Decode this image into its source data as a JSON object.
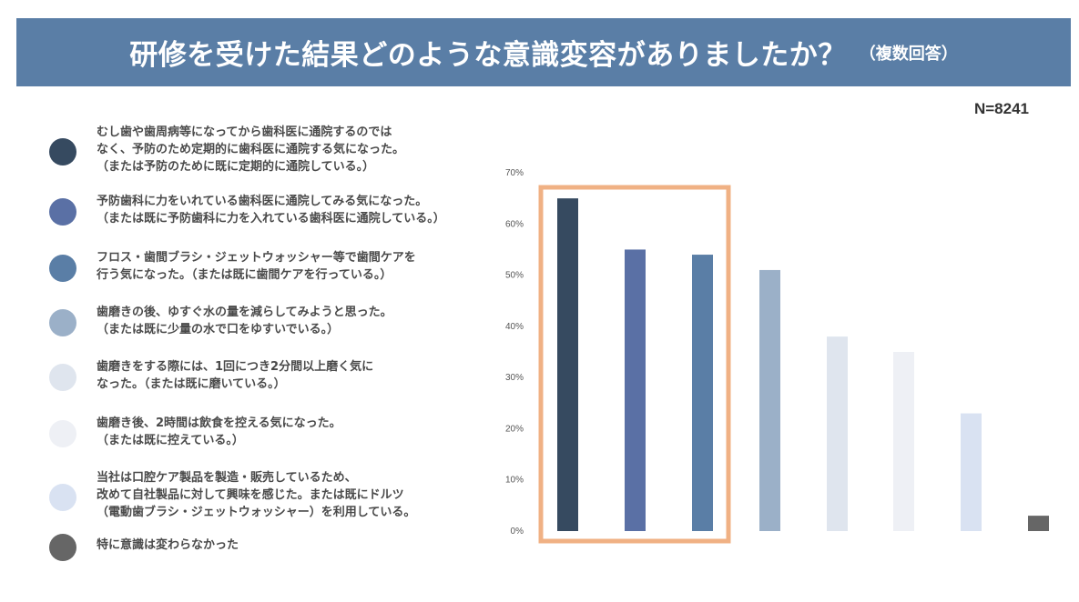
{
  "header": {
    "title": "研修を受けた結果どのような意識変容がありましたか？",
    "subtitle": "（複数回答）"
  },
  "sample_size": "N=8241",
  "colors": {
    "header_bg": "#5a7ea6",
    "highlight_box": "#f0b184"
  },
  "legend": [
    {
      "text": "むし歯や歯周病等になってから歯科医に通院するのでは\nなく、予防のため定期的に歯科医に通院する気になった。\n（または予防のために既に定期的に通院している。）",
      "color": "#364a60"
    },
    {
      "text": "予防歯科に力をいれている歯科医に通院してみる気になった。\n（または既に予防歯科に力を入れている歯科医に通院している。）",
      "color": "#5a70a5"
    },
    {
      "text": "フロス・歯間ブラシ・ジェットウォッシャー等で歯間ケアを\n行う気になった。（または既に歯間ケアを行っている。）",
      "color": "#5a7ea6"
    },
    {
      "text": "歯磨きの後、ゆすぐ水の量を減らしてみようと思った。\n（または既に少量の水で口をゆすいでいる。）",
      "color": "#9bb0c8"
    },
    {
      "text": "歯磨きをする際には、1回につき2分間以上磨く気に\nなった。（または既に磨いている。）",
      "color": "#dfe5ee"
    },
    {
      "text": "歯磨き後、2時間は飲食を控える気になった。\n（または既に控えている。）",
      "color": "#eef0f5"
    },
    {
      "text": "当社は口腔ケア製品を製造・販売しているため、\n改めて自社製品に対して興味を感じた。または既にドルツ\n（電動歯ブラシ・ジェットウォッシャー）を利用している。",
      "color": "#d9e2f2"
    },
    {
      "text": "特に意識は変わらなかった",
      "color": "#666666"
    }
  ],
  "chart_data": {
    "type": "bar",
    "title": "研修を受けた結果どのような意識変容がありましたか？",
    "ylim": [
      0,
      70
    ],
    "yticks": [
      "0%",
      "10%",
      "20%",
      "30%",
      "40%",
      "50%",
      "60%",
      "70%"
    ],
    "ytick_values": [
      0,
      10,
      20,
      30,
      40,
      50,
      60,
      70
    ],
    "values": [
      65,
      55,
      54,
      51,
      38,
      35,
      23,
      3
    ],
    "bar_colors": [
      "#364a60",
      "#5a70a5",
      "#5a7ea6",
      "#9bb0c8",
      "#dfe5ee",
      "#eef0f5",
      "#d9e2f2",
      "#666666"
    ],
    "highlighted_bars": [
      0,
      1,
      2
    ],
    "grid": false,
    "legend_position": "left"
  }
}
